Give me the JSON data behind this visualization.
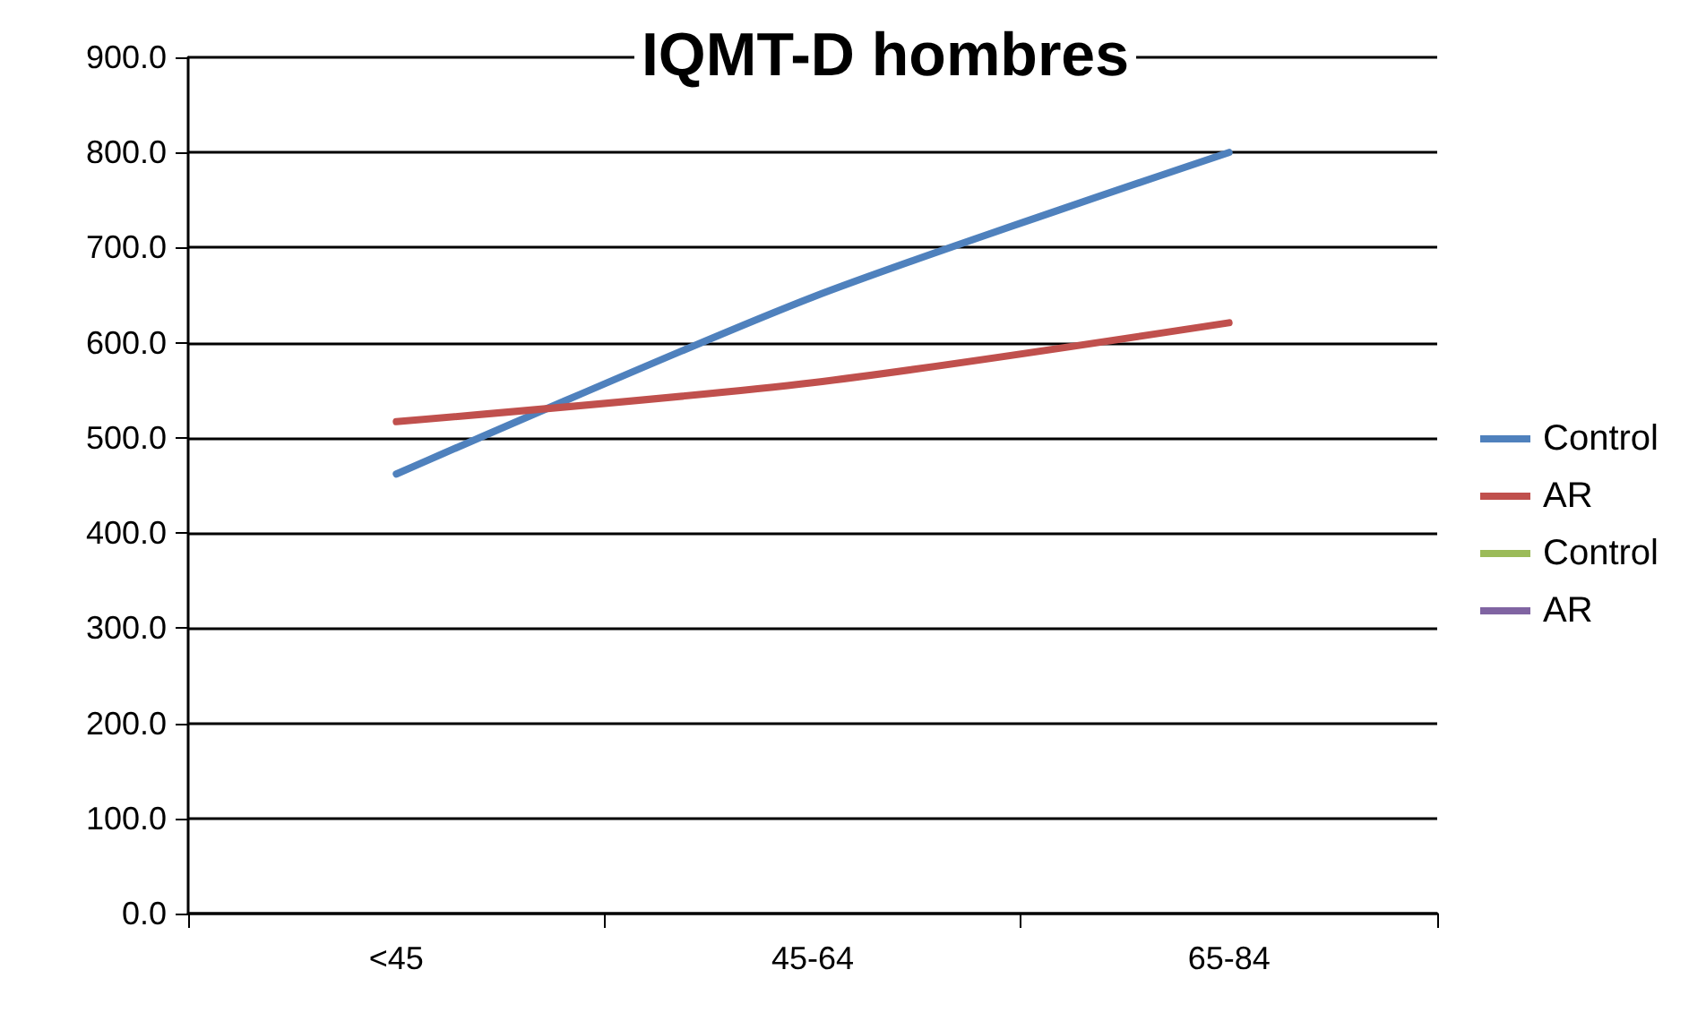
{
  "chart_data": {
    "type": "line",
    "title": "IQMT-D hombres",
    "categories": [
      "<45",
      "45-64",
      "65-84"
    ],
    "series": [
      {
        "name": "Control",
        "color": "#4f81bd",
        "values": [
          462,
          648,
          800
        ]
      },
      {
        "name": "AR",
        "color": "#c0504d",
        "values": [
          517,
          558,
          621
        ]
      },
      {
        "name": "Control",
        "color": "#9bbb59",
        "values": [
          null,
          null,
          null
        ]
      },
      {
        "name": "AR",
        "color": "#8064a2",
        "values": [
          null,
          null,
          null
        ]
      }
    ],
    "ylim": [
      0,
      900
    ],
    "yticks": [
      {
        "value": 0,
        "label": "0.0"
      },
      {
        "value": 100,
        "label": "100.0"
      },
      {
        "value": 200,
        "label": "200.0"
      },
      {
        "value": 300,
        "label": "300.0"
      },
      {
        "value": 400,
        "label": "400.0"
      },
      {
        "value": 500,
        "label": "500.0"
      },
      {
        "value": 600,
        "label": "600.0"
      },
      {
        "value": 700,
        "label": "700.0"
      },
      {
        "value": 800,
        "label": "800.0"
      },
      {
        "value": 900,
        "label": "900.0"
      }
    ],
    "grid": "y",
    "legend": "right",
    "marker": "none",
    "line_style": "solid"
  }
}
